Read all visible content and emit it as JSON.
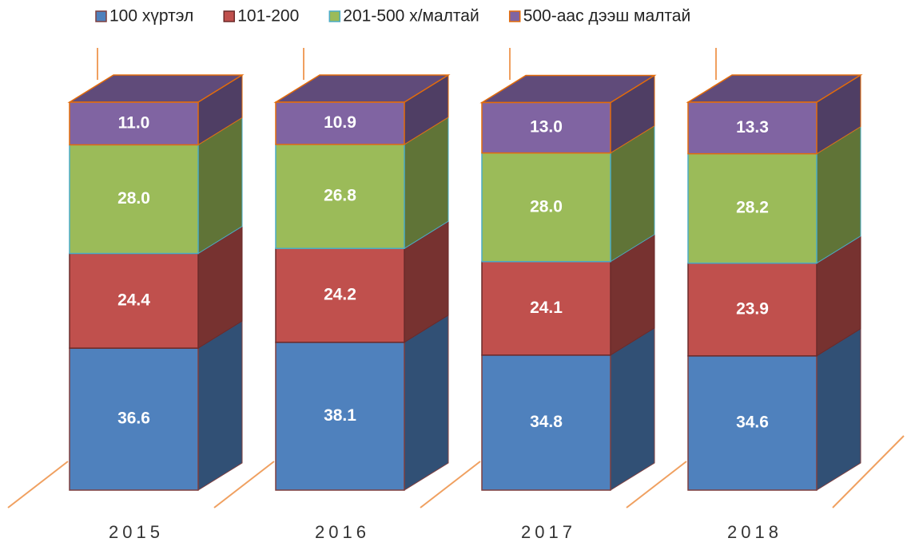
{
  "chart_data": {
    "type": "bar",
    "stacked": true,
    "legend": "top",
    "categories": [
      "2015",
      "2016",
      "2017",
      "2018"
    ],
    "series": [
      {
        "name": "100 хүртэл",
        "color": "#4f81bd",
        "values": [
          36.6,
          38.1,
          34.8,
          34.6
        ],
        "value_labels": [
          "36.6",
          "38.1",
          "34.8",
          "34.6"
        ]
      },
      {
        "name": "101-200",
        "color": "#c0504d",
        "values": [
          24.4,
          24.2,
          24.1,
          23.9
        ],
        "value_labels": [
          "24.4",
          "24.2",
          "24.1",
          "23.9"
        ]
      },
      {
        "name": "201-500 х/малтай",
        "color": "#9bbb59",
        "values": [
          28.0,
          26.8,
          28.0,
          28.2
        ],
        "value_labels": [
          "28.0",
          "26.8",
          "28.0",
          "28.2"
        ]
      },
      {
        "name": "500-аас дээш малтай",
        "color": "#8064a2",
        "values": [
          11.0,
          10.9,
          13.0,
          13.3
        ],
        "value_labels": [
          "11.0",
          "10.9",
          "13.0",
          "13.3"
        ]
      }
    ]
  }
}
